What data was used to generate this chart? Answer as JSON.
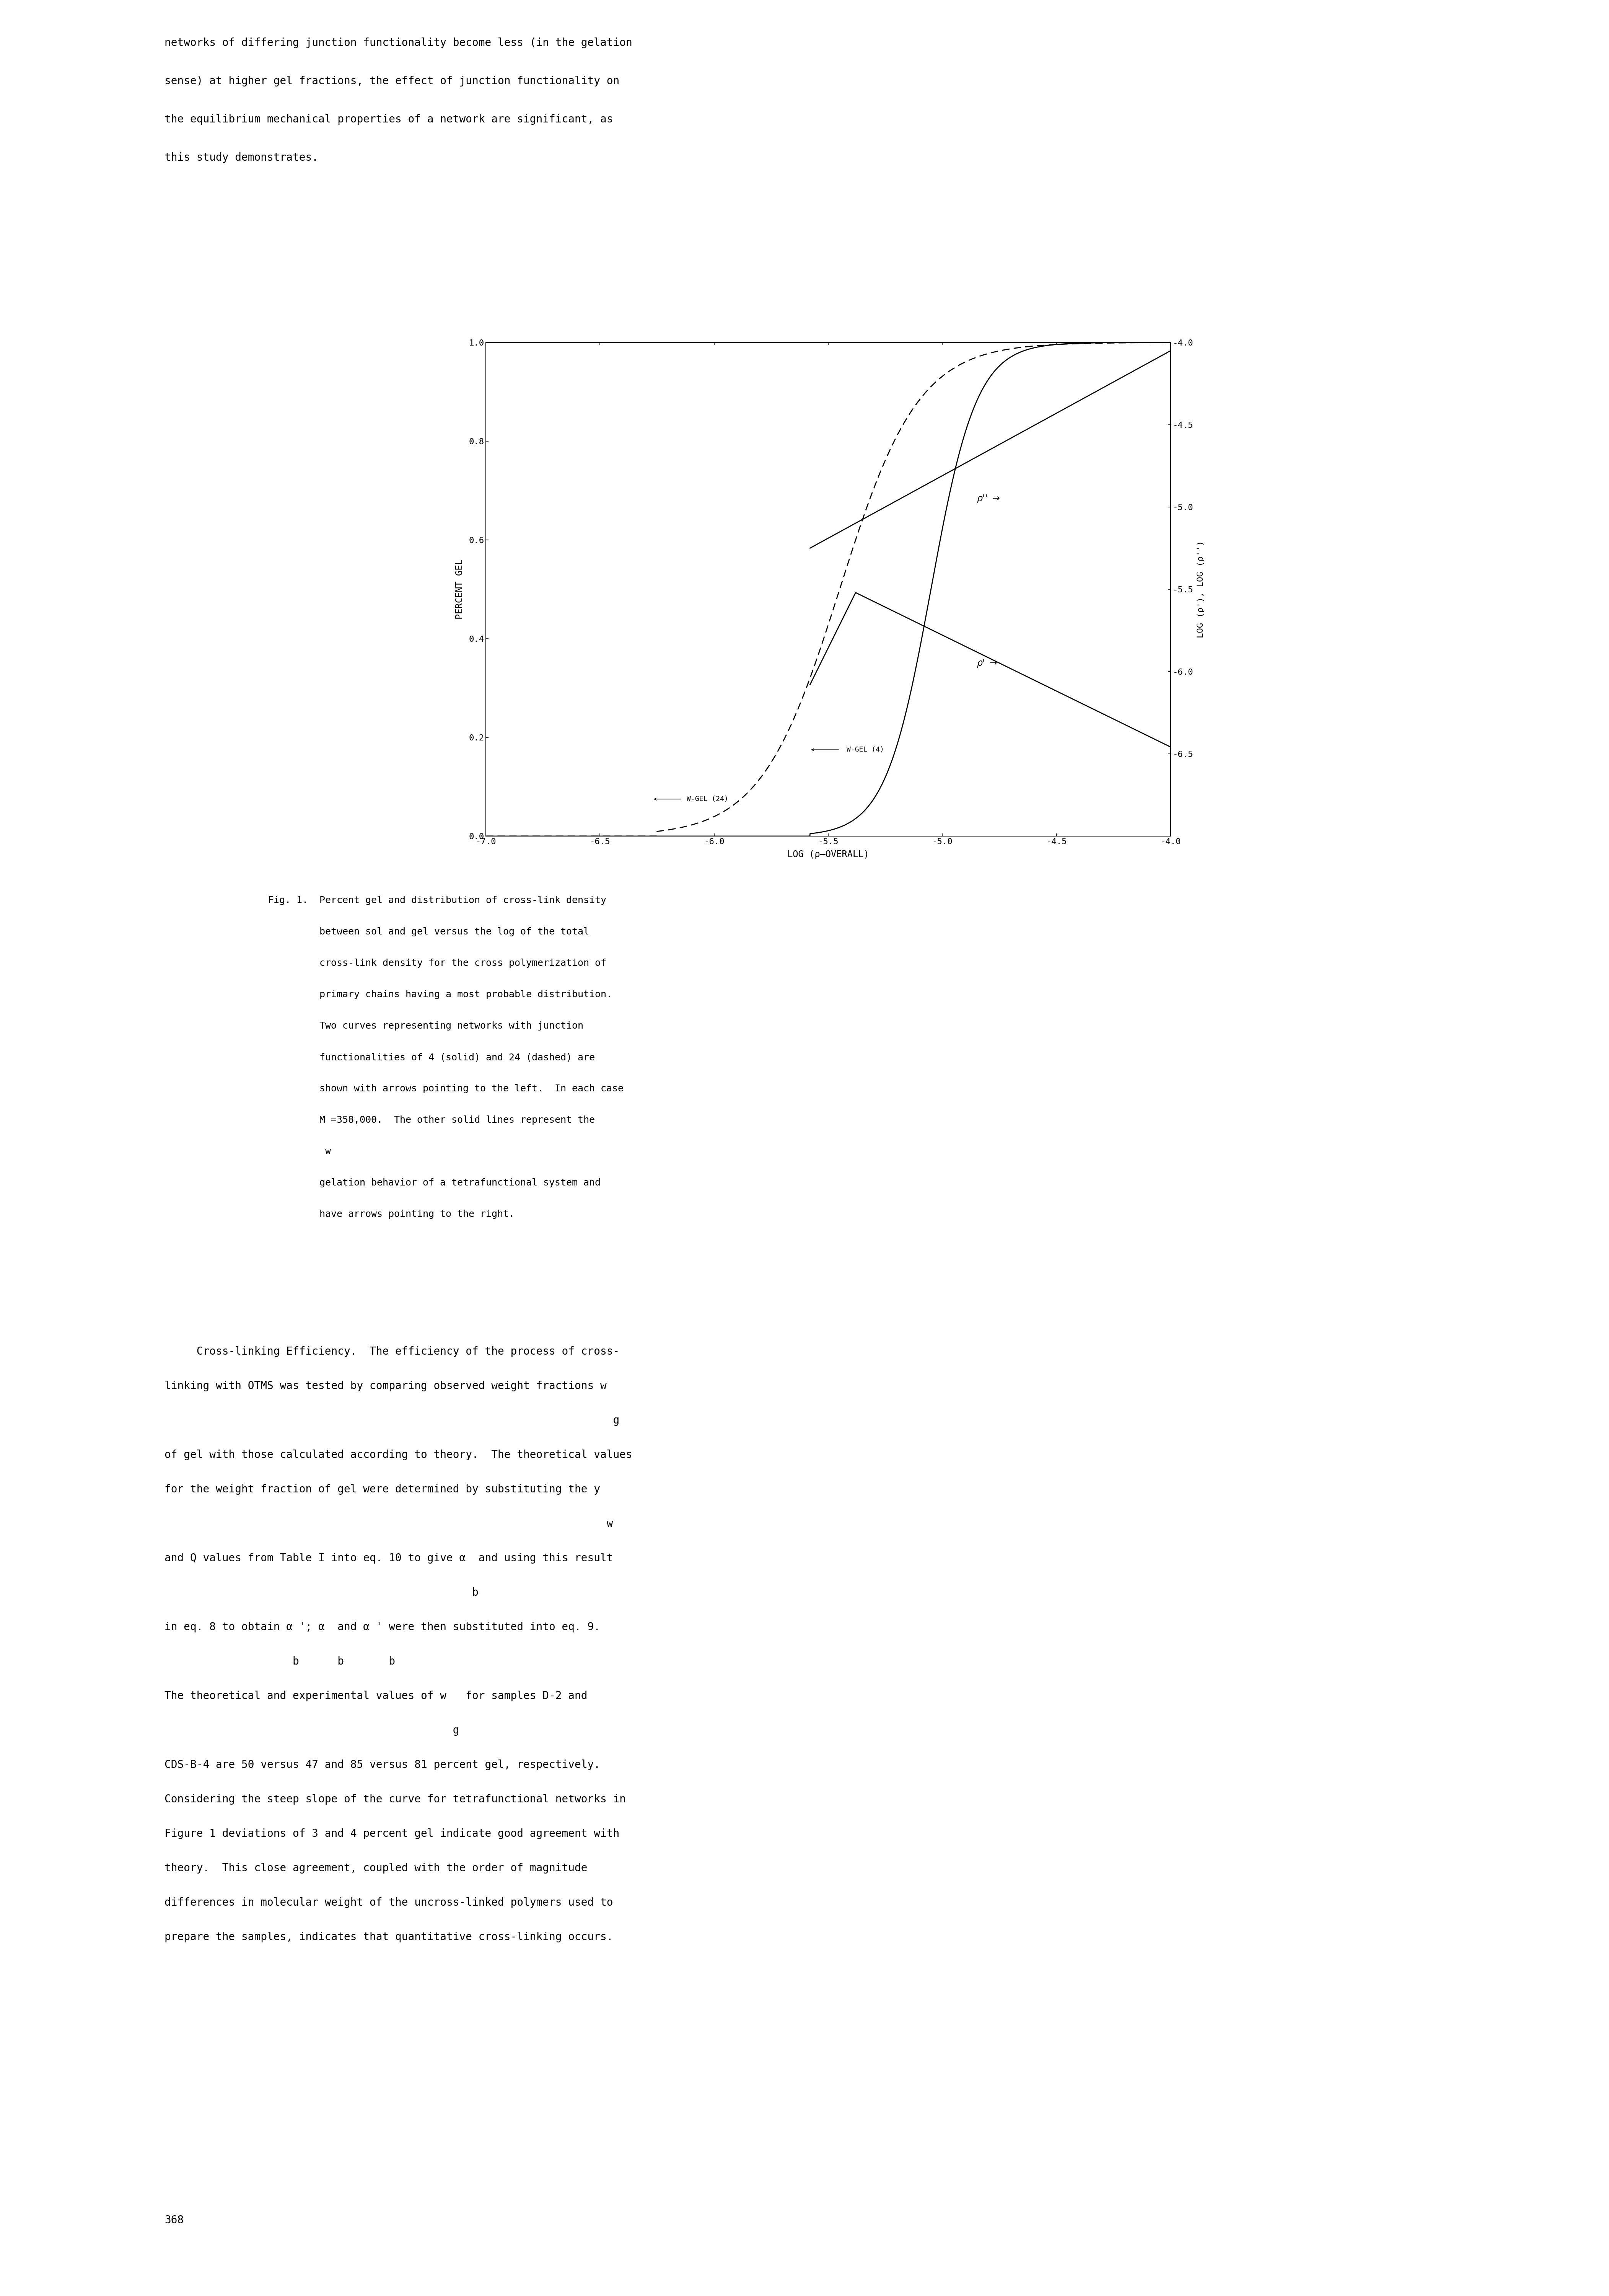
{
  "xlim": [
    -7.0,
    -4.0
  ],
  "ylim_left": [
    0.0,
    1.0
  ],
  "ylim_right": [
    -7.0,
    -4.0
  ],
  "right_axis_ticks": [
    -4.0,
    -4.5,
    -5.0,
    -5.5,
    -6.0,
    -6.5
  ],
  "left_axis_ticks": [
    0.0,
    0.2,
    0.4,
    0.6,
    0.8,
    1.0
  ],
  "x_ticks": [
    -7.0,
    -6.5,
    -6.0,
    -5.5,
    -5.0,
    -4.5,
    -4.0
  ],
  "xlabel": "LOG (ρ–OVERALL)",
  "ylabel_left": "PERCENT GEL",
  "ylabel_right": "LOG (ρ'), LOG (ρ'')",
  "background_color": "#ffffff",
  "page_text_lines": [
    "networks of differing junction functionality become less (in the gelation",
    "sense) at higher gel fractions, the effect of junction functionality on",
    "the equilibrium mechanical properties of a network are significant, as",
    "this study demonstrates."
  ],
  "caption_lines": [
    "Fig. 1.  Percent gel and distribution of cross-link density",
    "         between sol and gel versus the log of the total",
    "         cross-link density for the cross polymerization of",
    "         primary chains having a most probable distribution.",
    "         Two curves representing networks with junction",
    "         functionalities of 4 (solid) and 24 (dashed) are",
    "         shown with arrows pointing to the left.  In each case",
    "         M =358,000.  The other solid lines represent the",
    "          w",
    "         gelation behavior of a tetrafunctional system and",
    "         have arrows pointing to the right."
  ],
  "bottom_lines": [
    "     Cross-linking Efficiency.  The efficiency of the process of cross-",
    "linking with OTMS was tested by comparing observed weight fractions w",
    "                                                                      g",
    "of gel with those calculated according to theory.  The theoretical values",
    "for the weight fraction of gel were determined by substituting the y",
    "                                                                     w",
    "and Q values from Table I into eq. 10 to give α  and using this result",
    "                                                b",
    "in eq. 8 to obtain α '; α  and α ' were then substituted into eq. 9.",
    "                    b      b       b",
    "The theoretical and experimental values of w   for samples D-2 and",
    "                                             g",
    "CDS-B-4 are 50 versus 47 and 85 versus 81 percent gel, respectively.",
    "Considering the steep slope of the curve for tetrafunctional networks in",
    "Figure 1 deviations of 3 and 4 percent gel indicate good agreement with",
    "theory.  This close agreement, coupled with the order of magnitude",
    "differences in molecular weight of the uncross-linked polymers used to",
    "prepare the samples, indicates that quantitative cross-linking occurs."
  ],
  "page_number": "368"
}
